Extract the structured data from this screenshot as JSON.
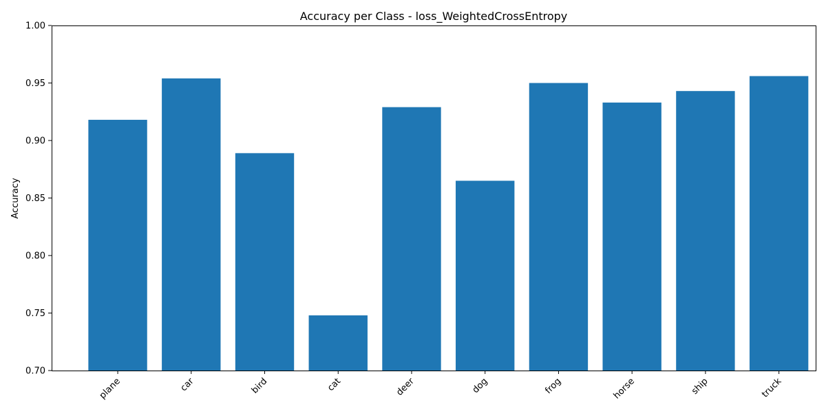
{
  "chart_data": {
    "type": "bar",
    "title": "Accuracy per Class - loss_WeightedCrossEntropy",
    "xlabel": "",
    "ylabel": "Accuracy",
    "categories": [
      "plane",
      "car",
      "bird",
      "cat",
      "deer",
      "dog",
      "frog",
      "horse",
      "ship",
      "truck"
    ],
    "values": [
      0.918,
      0.954,
      0.889,
      0.748,
      0.929,
      0.865,
      0.95,
      0.933,
      0.943,
      0.956
    ],
    "ylim": [
      0.7,
      1.0
    ],
    "yticks": [
      "0.70",
      "0.75",
      "0.80",
      "0.85",
      "0.90",
      "0.95",
      "1.00"
    ],
    "grid": false,
    "colors": {
      "bar": "#1f77b4",
      "axes": "#000000",
      "background": "#ffffff"
    }
  }
}
